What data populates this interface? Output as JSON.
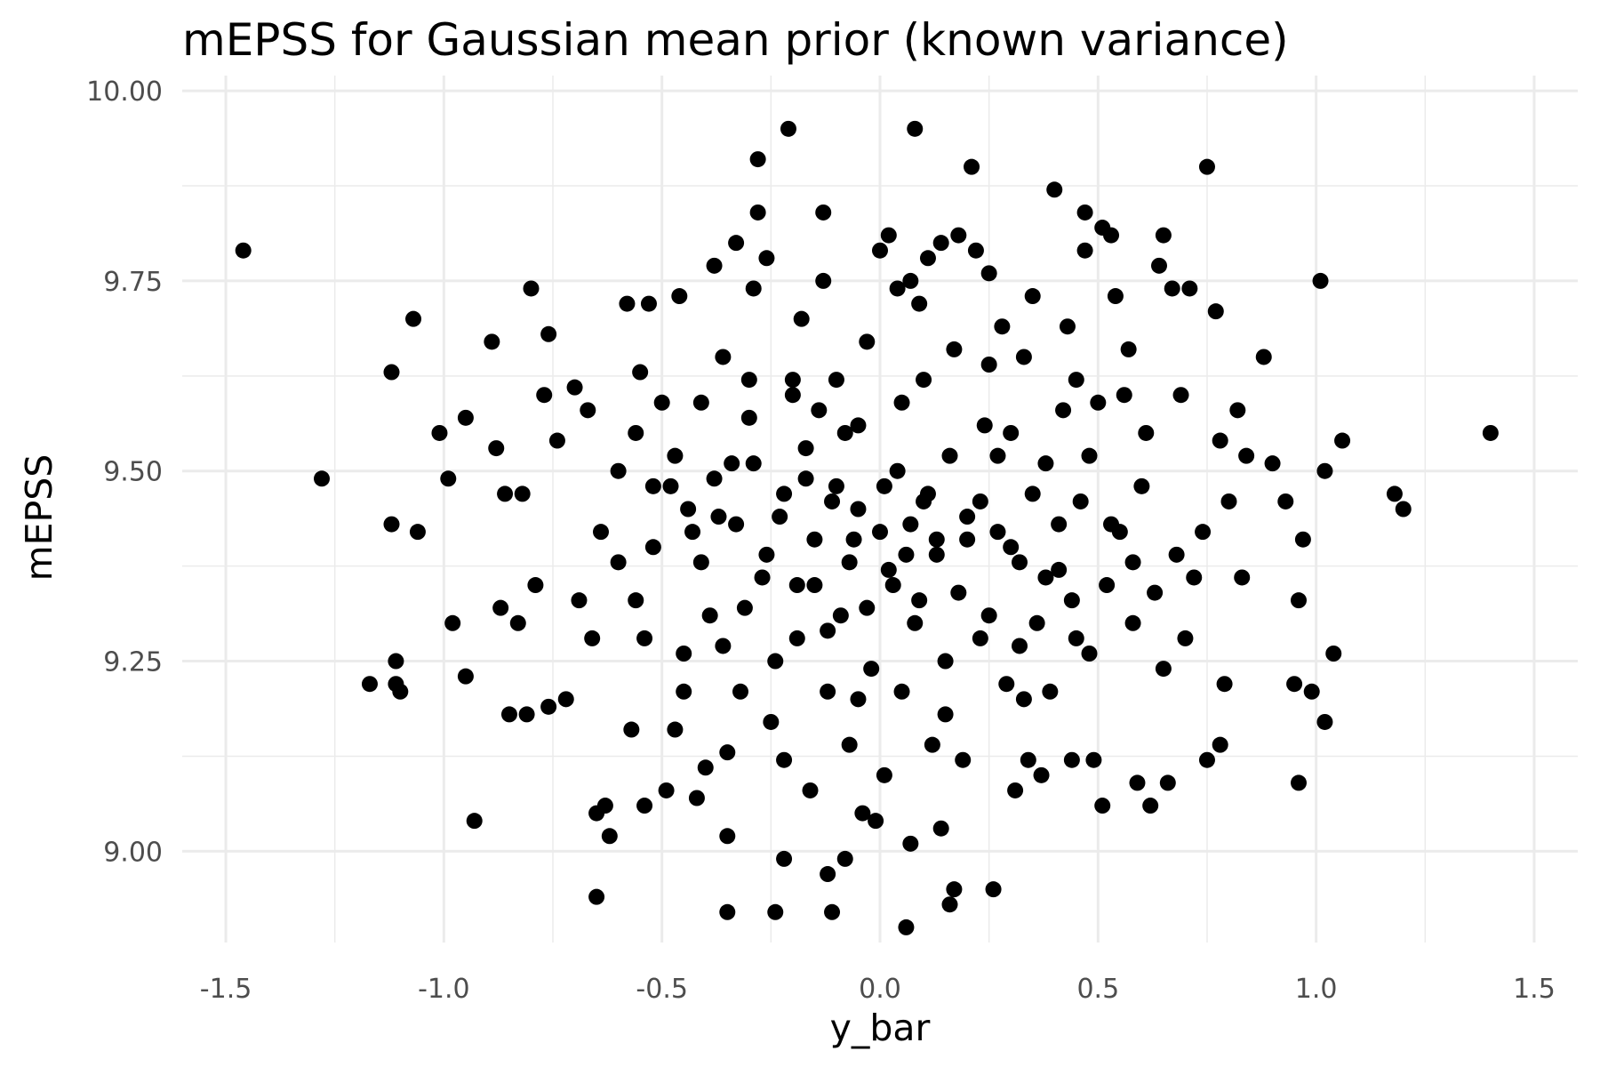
{
  "chart_data": {
    "type": "scatter",
    "title": "mEPSS for Gaussian mean prior (known variance)",
    "xlabel": "y_bar",
    "ylabel": "mEPSS",
    "xlim": [
      -1.6,
      1.6
    ],
    "ylim": [
      8.88,
      10.02
    ],
    "x_ticks": [
      -1.5,
      -1.0,
      -0.5,
      0.0,
      0.5,
      1.0,
      1.5
    ],
    "x_tick_labels": [
      "-1.5",
      "-1.0",
      "-0.5",
      "0.0",
      "0.5",
      "1.0",
      "1.5"
    ],
    "y_ticks": [
      9.0,
      9.25,
      9.5,
      9.75,
      10.0
    ],
    "y_tick_labels": [
      "9.00",
      "9.25",
      "9.50",
      "9.75",
      "10.00"
    ],
    "grid": true,
    "legend": false,
    "point_color": "#000000",
    "points": [
      [
        -1.46,
        9.79
      ],
      [
        -1.28,
        9.49
      ],
      [
        -1.17,
        9.22
      ],
      [
        -1.12,
        9.63
      ],
      [
        -1.12,
        9.43
      ],
      [
        -1.11,
        9.25
      ],
      [
        -1.11,
        9.22
      ],
      [
        -1.1,
        9.21
      ],
      [
        -1.07,
        9.7
      ],
      [
        -1.06,
        9.42
      ],
      [
        -1.01,
        9.55
      ],
      [
        -0.99,
        9.49
      ],
      [
        -0.98,
        9.3
      ],
      [
        -0.95,
        9.57
      ],
      [
        -0.95,
        9.23
      ],
      [
        -0.93,
        9.04
      ],
      [
        -0.89,
        9.67
      ],
      [
        -0.88,
        9.53
      ],
      [
        -0.87,
        9.32
      ],
      [
        -0.86,
        9.47
      ],
      [
        -0.85,
        9.18
      ],
      [
        -0.83,
        9.3
      ],
      [
        -0.82,
        9.47
      ],
      [
        -0.81,
        9.18
      ],
      [
        -0.8,
        9.74
      ],
      [
        -0.79,
        9.35
      ],
      [
        -0.77,
        9.6
      ],
      [
        -0.76,
        9.19
      ],
      [
        -0.76,
        9.68
      ],
      [
        -0.74,
        9.54
      ],
      [
        -0.72,
        9.2
      ],
      [
        -0.7,
        9.61
      ],
      [
        -0.69,
        9.33
      ],
      [
        -0.67,
        9.58
      ],
      [
        -0.66,
        9.28
      ],
      [
        -0.65,
        9.05
      ],
      [
        -0.65,
        8.94
      ],
      [
        -0.64,
        9.42
      ],
      [
        -0.63,
        9.06
      ],
      [
        -0.62,
        9.02
      ],
      [
        -0.6,
        9.5
      ],
      [
        -0.58,
        9.72
      ],
      [
        -0.57,
        9.16
      ],
      [
        -0.56,
        9.33
      ],
      [
        -0.55,
        9.63
      ],
      [
        -0.54,
        9.06
      ],
      [
        -0.53,
        9.72
      ],
      [
        -0.52,
        9.4
      ],
      [
        -0.5,
        9.59
      ],
      [
        -0.49,
        9.08
      ],
      [
        -0.48,
        9.48
      ],
      [
        -0.47,
        9.16
      ],
      [
        -0.46,
        9.73
      ],
      [
        -0.45,
        9.26
      ],
      [
        -0.43,
        9.42
      ],
      [
        -0.42,
        9.07
      ],
      [
        -0.41,
        9.59
      ],
      [
        -0.4,
        9.11
      ],
      [
        -0.39,
        9.31
      ],
      [
        -0.38,
        9.77
      ],
      [
        -0.37,
        9.44
      ],
      [
        -0.36,
        9.65
      ],
      [
        -0.35,
        9.13
      ],
      [
        -0.35,
        9.02
      ],
      [
        -0.35,
        8.92
      ],
      [
        -0.34,
        9.51
      ],
      [
        -0.33,
        9.8
      ],
      [
        -0.32,
        9.21
      ],
      [
        -0.3,
        9.57
      ],
      [
        -0.29,
        9.74
      ],
      [
        -0.28,
        9.91
      ],
      [
        -0.28,
        9.84
      ],
      [
        -0.27,
        9.36
      ],
      [
        -0.26,
        9.78
      ],
      [
        -0.25,
        9.17
      ],
      [
        -0.24,
        8.92
      ],
      [
        -0.23,
        9.44
      ],
      [
        -0.22,
        9.12
      ],
      [
        -0.22,
        8.99
      ],
      [
        -0.21,
        9.95
      ],
      [
        -0.2,
        9.62
      ],
      [
        -0.19,
        9.28
      ],
      [
        -0.18,
        9.7
      ],
      [
        -0.17,
        9.49
      ],
      [
        -0.16,
        9.08
      ],
      [
        -0.15,
        9.35
      ],
      [
        -0.14,
        9.58
      ],
      [
        -0.13,
        9.84
      ],
      [
        -0.13,
        9.75
      ],
      [
        -0.12,
        9.21
      ],
      [
        -0.12,
        8.97
      ],
      [
        -0.11,
        9.46
      ],
      [
        -0.11,
        8.92
      ],
      [
        -0.1,
        9.62
      ],
      [
        -0.09,
        9.31
      ],
      [
        -0.08,
        9.55
      ],
      [
        -0.08,
        8.99
      ],
      [
        -0.07,
        9.14
      ],
      [
        -0.06,
        9.41
      ],
      [
        -0.05,
        9.56
      ],
      [
        -0.04,
        9.05
      ],
      [
        -0.03,
        9.67
      ],
      [
        -0.02,
        9.24
      ],
      [
        -0.01,
        9.04
      ],
      [
        0.0,
        9.79
      ],
      [
        0.01,
        9.48
      ],
      [
        0.01,
        9.1
      ],
      [
        0.02,
        9.81
      ],
      [
        0.03,
        9.35
      ],
      [
        0.04,
        9.74
      ],
      [
        0.05,
        9.59
      ],
      [
        0.05,
        9.21
      ],
      [
        0.06,
        9.39
      ],
      [
        0.06,
        8.9
      ],
      [
        0.07,
        9.75
      ],
      [
        0.07,
        9.01
      ],
      [
        0.08,
        9.95
      ],
      [
        0.08,
        9.3
      ],
      [
        0.09,
        9.72
      ],
      [
        0.1,
        9.46
      ],
      [
        0.11,
        9.78
      ],
      [
        0.12,
        9.14
      ],
      [
        0.13,
        9.41
      ],
      [
        0.14,
        9.8
      ],
      [
        0.14,
        9.03
      ],
      [
        0.15,
        9.25
      ],
      [
        0.16,
        8.93
      ],
      [
        0.17,
        9.66
      ],
      [
        0.17,
        8.95
      ],
      [
        0.18,
        9.81
      ],
      [
        0.19,
        9.12
      ],
      [
        0.2,
        9.44
      ],
      [
        0.21,
        9.9
      ],
      [
        0.22,
        9.79
      ],
      [
        0.23,
        9.28
      ],
      [
        0.24,
        9.56
      ],
      [
        0.25,
        9.76
      ],
      [
        0.26,
        8.95
      ],
      [
        0.27,
        9.42
      ],
      [
        0.28,
        9.69
      ],
      [
        0.29,
        9.22
      ],
      [
        0.3,
        9.55
      ],
      [
        0.31,
        9.08
      ],
      [
        0.32,
        9.38
      ],
      [
        0.33,
        9.65
      ],
      [
        0.34,
        9.12
      ],
      [
        0.35,
        9.73
      ],
      [
        0.36,
        9.3
      ],
      [
        0.37,
        9.1
      ],
      [
        0.38,
        9.51
      ],
      [
        0.39,
        9.21
      ],
      [
        0.4,
        9.87
      ],
      [
        0.41,
        9.37
      ],
      [
        0.42,
        9.58
      ],
      [
        0.43,
        9.69
      ],
      [
        0.44,
        9.12
      ],
      [
        0.45,
        9.28
      ],
      [
        0.46,
        9.46
      ],
      [
        0.47,
        9.84
      ],
      [
        0.47,
        9.79
      ],
      [
        0.48,
        9.26
      ],
      [
        0.49,
        9.12
      ],
      [
        0.5,
        9.59
      ],
      [
        0.51,
        9.82
      ],
      [
        0.51,
        9.06
      ],
      [
        0.52,
        9.35
      ],
      [
        0.53,
        9.81
      ],
      [
        0.54,
        9.73
      ],
      [
        0.55,
        9.42
      ],
      [
        0.56,
        9.6
      ],
      [
        0.57,
        9.66
      ],
      [
        0.58,
        9.3
      ],
      [
        0.59,
        9.09
      ],
      [
        0.6,
        9.48
      ],
      [
        0.61,
        9.55
      ],
      [
        0.62,
        9.06
      ],
      [
        0.63,
        9.34
      ],
      [
        0.64,
        9.77
      ],
      [
        0.65,
        9.81
      ],
      [
        0.65,
        9.24
      ],
      [
        0.66,
        9.09
      ],
      [
        0.67,
        9.74
      ],
      [
        0.68,
        9.39
      ],
      [
        0.69,
        9.6
      ],
      [
        0.7,
        9.28
      ],
      [
        0.71,
        9.74
      ],
      [
        0.72,
        9.36
      ],
      [
        0.74,
        9.42
      ],
      [
        0.75,
        9.9
      ],
      [
        0.75,
        9.12
      ],
      [
        0.77,
        9.71
      ],
      [
        0.78,
        9.54
      ],
      [
        0.78,
        9.14
      ],
      [
        0.79,
        9.22
      ],
      [
        0.8,
        9.46
      ],
      [
        0.82,
        9.58
      ],
      [
        0.83,
        9.36
      ],
      [
        0.84,
        9.52
      ],
      [
        0.88,
        9.65
      ],
      [
        0.9,
        9.51
      ],
      [
        0.93,
        9.46
      ],
      [
        0.95,
        9.22
      ],
      [
        0.96,
        9.09
      ],
      [
        0.96,
        9.33
      ],
      [
        0.97,
        9.41
      ],
      [
        0.99,
        9.21
      ],
      [
        1.01,
        9.75
      ],
      [
        1.02,
        9.5
      ],
      [
        1.02,
        9.17
      ],
      [
        1.04,
        9.26
      ],
      [
        1.06,
        9.54
      ],
      [
        1.18,
        9.47
      ],
      [
        1.2,
        9.45
      ],
      [
        1.4,
        9.55
      ],
      [
        -0.52,
        9.48
      ],
      [
        -0.47,
        9.52
      ],
      [
        -0.44,
        9.45
      ],
      [
        -0.41,
        9.38
      ],
      [
        -0.38,
        9.49
      ],
      [
        -0.36,
        9.27
      ],
      [
        -0.33,
        9.43
      ],
      [
        -0.31,
        9.32
      ],
      [
        -0.29,
        9.51
      ],
      [
        -0.26,
        9.39
      ],
      [
        -0.24,
        9.25
      ],
      [
        -0.22,
        9.47
      ],
      [
        -0.19,
        9.35
      ],
      [
        -0.17,
        9.53
      ],
      [
        -0.15,
        9.41
      ],
      [
        -0.12,
        9.29
      ],
      [
        -0.1,
        9.48
      ],
      [
        -0.07,
        9.38
      ],
      [
        -0.05,
        9.45
      ],
      [
        -0.03,
        9.32
      ],
      [
        0.0,
        9.42
      ],
      [
        0.02,
        9.37
      ],
      [
        0.04,
        9.5
      ],
      [
        0.07,
        9.43
      ],
      [
        0.09,
        9.33
      ],
      [
        0.11,
        9.47
      ],
      [
        0.13,
        9.39
      ],
      [
        0.16,
        9.52
      ],
      [
        0.18,
        9.34
      ],
      [
        0.2,
        9.41
      ],
      [
        0.23,
        9.46
      ],
      [
        0.25,
        9.31
      ],
      [
        0.27,
        9.52
      ],
      [
        0.3,
        9.4
      ],
      [
        0.32,
        9.27
      ],
      [
        0.35,
        9.47
      ],
      [
        0.38,
        9.36
      ],
      [
        0.41,
        9.43
      ],
      [
        0.44,
        9.33
      ],
      [
        0.48,
        9.52
      ],
      [
        -0.6,
        9.38
      ],
      [
        -0.56,
        9.55
      ],
      [
        -0.54,
        9.28
      ],
      [
        0.53,
        9.43
      ],
      [
        0.58,
        9.38
      ],
      [
        -0.2,
        9.6
      ],
      [
        0.1,
        9.62
      ],
      [
        -0.05,
        9.2
      ],
      [
        0.15,
        9.18
      ],
      [
        0.25,
        9.64
      ],
      [
        -0.3,
        9.62
      ],
      [
        0.33,
        9.2
      ],
      [
        -0.45,
        9.21
      ],
      [
        0.45,
        9.62
      ]
    ]
  }
}
